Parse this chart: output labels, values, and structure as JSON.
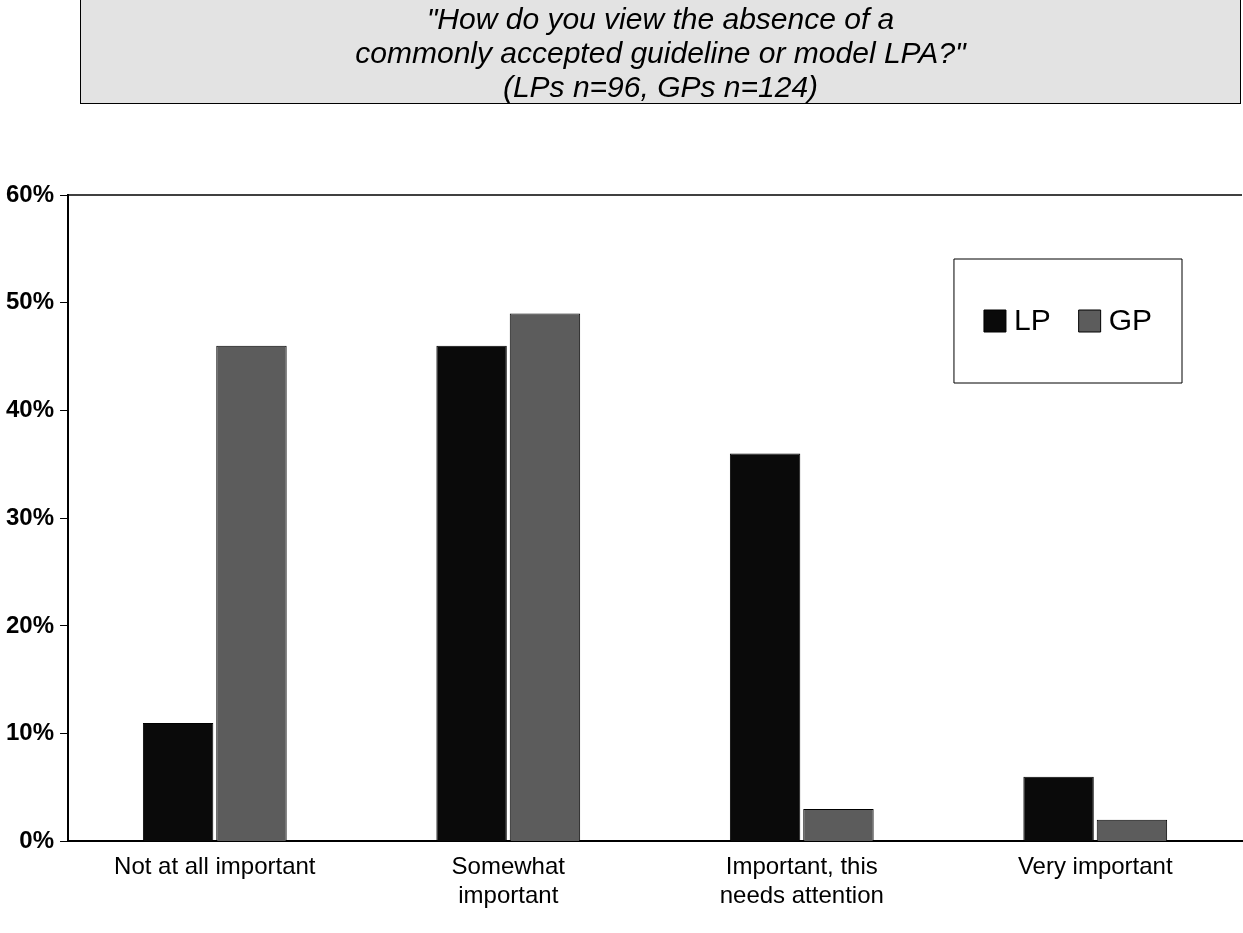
{
  "chart_data": {
    "type": "bar",
    "title": "\"How do you view the absence of a\ncommonly accepted guideline or model LPA?\"",
    "subtitle": "(LPs n=96, GPs n=124)",
    "categories": [
      "Not at all important",
      "Somewhat important",
      "Important, this needs attention",
      "Very important"
    ],
    "series": [
      {
        "name": "LP",
        "color": "#0a0a0a",
        "values": [
          11,
          46,
          36,
          6
        ]
      },
      {
        "name": "GP",
        "color": "#5c5c5c",
        "values": [
          46,
          49,
          3,
          2
        ]
      }
    ],
    "ylim": [
      0,
      60
    ],
    "yticks": [
      {
        "value": 0,
        "label": "0%"
      },
      {
        "value": 10,
        "label": "10%"
      },
      {
        "value": 20,
        "label": "20%"
      },
      {
        "value": 30,
        "label": "30%"
      },
      {
        "value": 40,
        "label": "40%"
      },
      {
        "value": 50,
        "label": "50%"
      },
      {
        "value": 60,
        "label": "60%"
      }
    ],
    "grid": false,
    "legend": "top right"
  }
}
